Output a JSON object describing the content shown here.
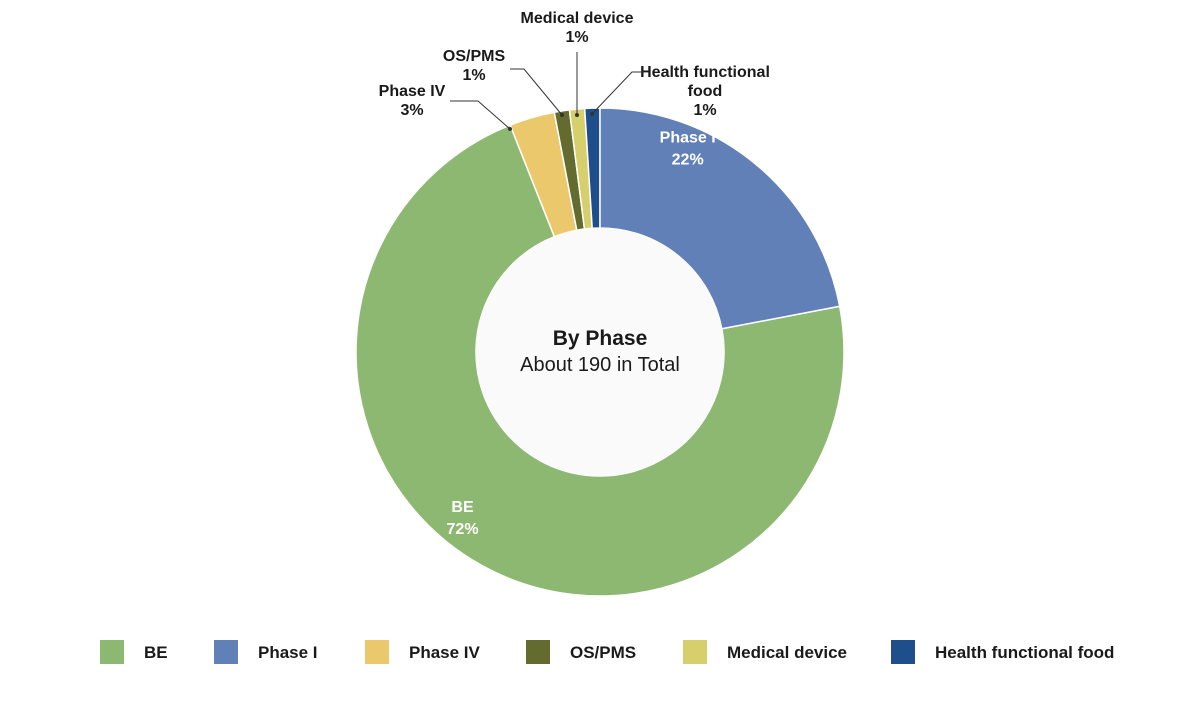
{
  "chart_data": {
    "type": "pie",
    "variant": "donut",
    "center_title": "By Phase",
    "center_subtitle": "About 190 in Total",
    "slices": [
      {
        "name": "BE",
        "value": 72,
        "value_label": "72%",
        "color": "#8db872"
      },
      {
        "name": "Phase IV",
        "value": 3,
        "value_label": "3%",
        "color": "#ebc86b"
      },
      {
        "name": "OS/PMS",
        "value": 1,
        "value_label": "1%",
        "color": "#636b2f"
      },
      {
        "name": "Medical device",
        "value": 1,
        "value_label": "1%",
        "color": "#d6cf6b"
      },
      {
        "name": "Health functional food",
        "value": 1,
        "value_label": "1%",
        "color": "#1f4e8c"
      },
      {
        "name": "Phase I",
        "value": 22,
        "value_label": "22%",
        "color": "#6180b8"
      }
    ],
    "callout_labels": {
      "Phase IV": [
        "Phase IV",
        "3%"
      ],
      "OS/PMS": [
        "OS/PMS",
        "1%"
      ],
      "Medical device": [
        "Medical device",
        "1%"
      ],
      "Health functional food": [
        "Health functional",
        "food",
        "1%"
      ]
    },
    "legend": {
      "placement": "bottom",
      "items": [
        {
          "name": "BE",
          "color": "#8db872"
        },
        {
          "name": "Phase I",
          "color": "#6180b8"
        },
        {
          "name": "Phase IV",
          "color": "#ebc86b"
        },
        {
          "name": "OS/PMS",
          "color": "#636b2f"
        },
        {
          "name": "Medical device",
          "color": "#d6cf6b"
        },
        {
          "name": "Health functional food",
          "color": "#1f4e8c"
        }
      ]
    }
  }
}
